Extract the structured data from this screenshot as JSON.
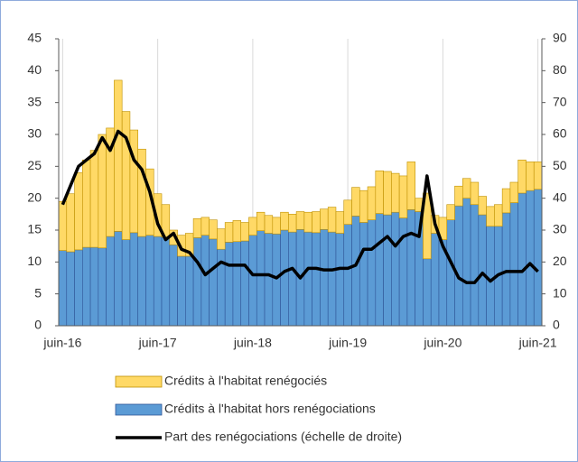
{
  "chart_data": {
    "type": "bar+line",
    "categories": [
      "juin-16",
      null,
      null,
      null,
      null,
      null,
      null,
      null,
      null,
      null,
      null,
      null,
      "juin-17",
      null,
      null,
      null,
      null,
      null,
      null,
      null,
      null,
      null,
      null,
      null,
      "juin-18",
      null,
      null,
      null,
      null,
      null,
      null,
      null,
      null,
      null,
      null,
      null,
      "juin-19",
      null,
      null,
      null,
      null,
      null,
      null,
      null,
      null,
      null,
      null,
      null,
      "juin-20",
      null,
      null,
      null,
      null,
      null,
      null,
      null,
      null,
      null,
      null,
      null,
      "juin-21"
    ],
    "series": [
      {
        "name": "Crédits à l'habitat hors renégociations",
        "color": "#5b9bd5",
        "stack": true,
        "values": [
          11.8,
          11.6,
          11.9,
          12.3,
          12.3,
          12.2,
          14.0,
          14.8,
          13.5,
          14.6,
          14.0,
          14.2,
          14.0,
          13.9,
          12.7,
          10.9,
          10.9,
          13.8,
          14.2,
          13.6,
          12.0,
          13.1,
          13.2,
          13.3,
          14.2,
          14.9,
          14.5,
          14.4,
          15.0,
          14.7,
          15.1,
          14.7,
          14.6,
          15.1,
          14.7,
          14.5,
          15.9,
          17.2,
          16.2,
          16.6,
          17.6,
          17.4,
          17.8,
          16.9,
          18.2,
          17.9,
          10.5,
          14.5,
          13.5,
          16.6,
          18.8,
          20.0,
          19.0,
          17.4,
          15.6,
          15.6,
          17.7,
          19.3,
          20.8,
          21.2,
          21.4
        ]
      },
      {
        "name": "Crédits à l'habitat renégociés",
        "color": "#ffd966",
        "stack": true,
        "values": [
          7.7,
          9.1,
          12.1,
          13.7,
          15.2,
          17.8,
          17.0,
          23.7,
          20.1,
          16.1,
          13.7,
          10.4,
          6.7,
          5.1,
          2.3,
          3.3,
          3.6,
          3.0,
          2.8,
          3.0,
          3.2,
          3.1,
          3.3,
          2.9,
          2.8,
          2.9,
          2.8,
          2.6,
          2.8,
          2.8,
          2.8,
          3.1,
          3.3,
          3.2,
          3.9,
          3.4,
          3.8,
          4.5,
          5.0,
          5.2,
          6.7,
          6.8,
          6.1,
          6.6,
          7.5,
          2.1,
          10.3,
          2.8,
          3.5,
          2.4,
          3.1,
          3.1,
          3.5,
          2.9,
          3.1,
          3.4,
          3.8,
          3.2,
          5.2,
          4.5,
          4.3
        ]
      },
      {
        "name": "Part des renégociations (échelle de droite)",
        "color": "#000000",
        "axis": "y2",
        "line": true,
        "values": [
          38,
          44,
          50,
          52,
          54,
          59,
          55,
          61,
          59,
          52,
          49,
          42,
          32,
          27,
          29,
          24,
          23,
          20,
          16,
          18,
          20,
          19,
          19,
          19,
          16,
          16,
          16,
          15,
          17,
          18,
          15,
          18,
          18,
          17.5,
          17.5,
          18,
          18,
          19,
          24,
          24,
          26,
          28,
          25,
          28,
          29,
          28,
          47,
          32,
          25,
          20,
          15,
          13.5,
          13.5,
          16.5,
          14,
          16,
          17,
          17,
          17,
          19.5,
          17
        ]
      }
    ],
    "ylim": [
      0,
      45
    ],
    "yticks": [
      0,
      5,
      10,
      15,
      20,
      25,
      30,
      35,
      40,
      45
    ],
    "y2lim": [
      0,
      90
    ],
    "y2ticks": [
      0,
      10,
      20,
      30,
      40,
      50,
      60,
      70,
      80,
      90
    ],
    "legend": "bottom"
  }
}
